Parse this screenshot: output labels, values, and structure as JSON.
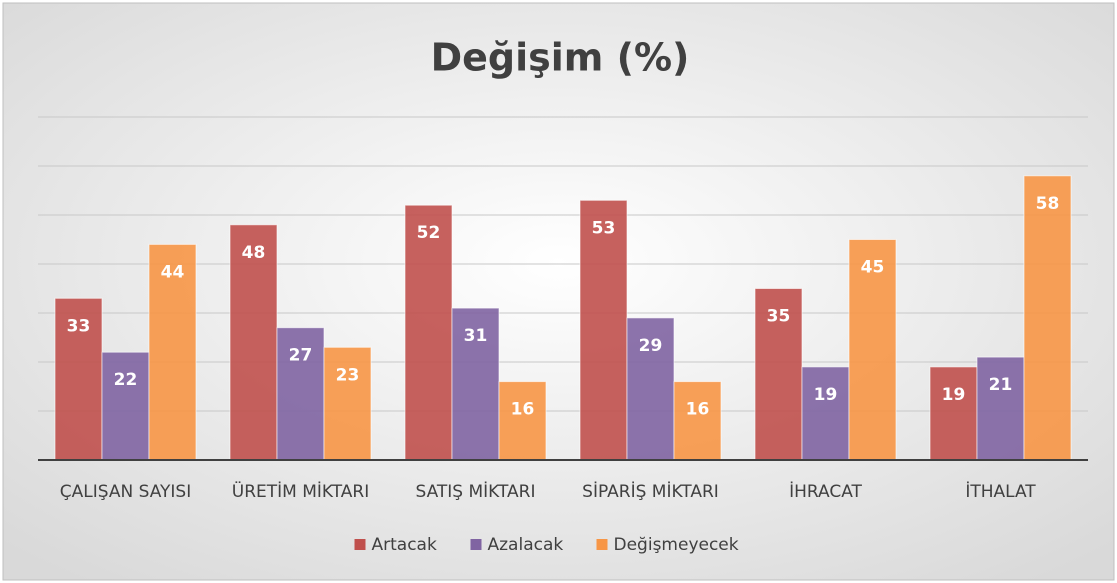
{
  "chart_data": {
    "type": "bar",
    "title": "Değişim (%)",
    "categories": [
      "ÇALIŞAN SAYISI",
      "ÜRETİM MİKTARI",
      "SATIŞ MİKTARI",
      "SİPARİŞ MİKTARI",
      "İHRACAT",
      "İTHALAT"
    ],
    "series": [
      {
        "name": "Artacak",
        "color": "#c0504d",
        "values": [
          33,
          48,
          52,
          53,
          35,
          19
        ]
      },
      {
        "name": "Azalacak",
        "color": "#8064a2",
        "values": [
          22,
          27,
          31,
          29,
          19,
          21
        ]
      },
      {
        "name": "Değişmeyecek",
        "color": "#f79646",
        "values": [
          44,
          23,
          16,
          16,
          45,
          58
        ]
      }
    ],
    "ylim": [
      0,
      70
    ],
    "yticks": [
      0,
      10,
      20,
      30,
      40,
      50,
      60,
      70
    ],
    "grid": true,
    "show_tick_labels": false,
    "legend": "bottom"
  }
}
